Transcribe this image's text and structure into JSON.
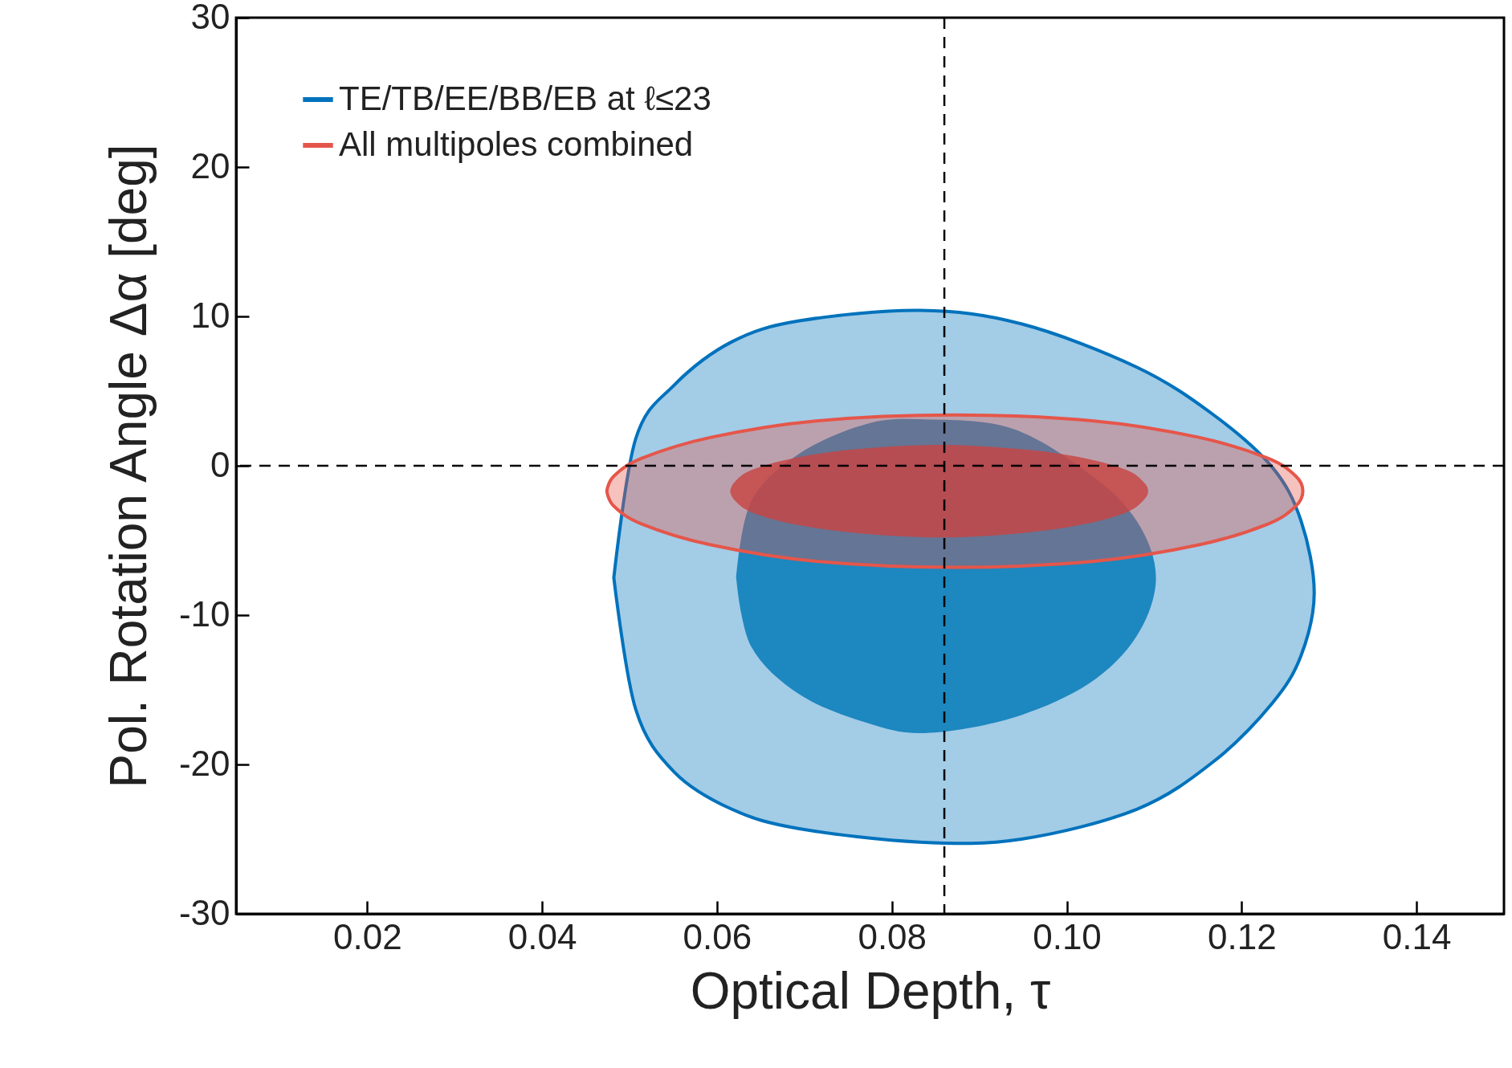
{
  "chart_data": {
    "type": "area",
    "xlabel": "Optical Depth, τ",
    "ylabel": "Pol. Rotation Angle Δα [deg]",
    "xlim": [
      0.005,
      0.15
    ],
    "ylim": [
      -30,
      30
    ],
    "xticks": [
      0.02,
      0.04,
      0.06,
      0.08,
      {
        "value": 0.1,
        "label": "0.10"
      },
      0.12,
      0.14
    ],
    "yticks": [
      -30,
      -20,
      -10,
      0,
      10,
      20,
      30
    ],
    "grid": false,
    "legend": "top left",
    "series": [
      {
        "name": "TE/TB/EE/BB/EB at ℓ≤23",
        "color": "#0072bc",
        "line_style": "solid",
        "x": [
          0.0482,
          0.0507,
          0.0551,
          0.0617,
          0.0694,
          0.0832,
          0.0948,
          0.108,
          0.1168,
          0.1235,
          0.1268,
          0.1283,
          0.1268,
          0.1235,
          0.1168,
          0.108,
          0.0948,
          0.0832,
          0.0694,
          0.0617,
          0.0551,
          0.0507,
          0.0482
        ],
        "values": [
          -7.5,
          1.8,
          5.4,
          8.3,
          9.7,
          10.4,
          9.5,
          6.6,
          3.4,
          -0.1,
          -3.7,
          -8.5,
          -12.7,
          -15.9,
          -19.8,
          -23.0,
          -25.0,
          -25.2,
          -24.3,
          -23.0,
          -20.5,
          -16.3,
          -7.5
        ]
      },
      {
        "color": "#0077b6",
        "x": [
          0.0622,
          0.0639,
          0.0694,
          0.0771,
          0.0838,
          0.0937,
          0.1025,
          0.108,
          0.1102,
          0.108,
          0.1025,
          0.0937,
          0.0838,
          0.0771,
          0.0694,
          0.0639,
          0.0622
        ],
        "values": [
          -7.5,
          -2.4,
          0.8,
          2.8,
          3.1,
          2.5,
          -0.5,
          -3.7,
          -7.5,
          -11.4,
          -14.6,
          -16.9,
          -17.9,
          -17.2,
          -15.3,
          -12.1,
          -7.5
        ]
      },
      {
        "name": "All multipoles combined",
        "color": "#e5564a",
        "line_style": "solid",
        "x": [
          0.0474,
          0.0482,
          0.0514,
          0.0593,
          0.0713,
          0.0872,
          0.1031,
          0.1151,
          0.123,
          0.1262,
          0.127,
          0.1262,
          0.123,
          0.1151,
          0.1031,
          0.0872,
          0.0713,
          0.0593,
          0.0514,
          0.0482,
          0.0474
        ],
        "values": [
          -1.7,
          -0.7,
          0.5,
          1.9,
          3.0,
          3.4,
          3.0,
          1.9,
          0.5,
          -0.7,
          -1.7,
          -2.7,
          -3.9,
          -5.3,
          -6.4,
          -6.8,
          -6.4,
          -5.3,
          -3.9,
          -2.7,
          -1.7
        ]
      },
      {
        "color": "#c84443",
        "x": [
          0.0615,
          0.062,
          0.0639,
          0.0687,
          0.0758,
          0.0854,
          0.095,
          0.1021,
          0.1069,
          0.1088,
          0.1093,
          0.1088,
          0.1069,
          0.1021,
          0.095,
          0.0854,
          0.0758,
          0.0687,
          0.0639,
          0.062,
          0.0615
        ],
        "values": [
          -1.7,
          -1.1,
          -0.3,
          0.5,
          1.1,
          1.4,
          1.1,
          0.5,
          -0.3,
          -1.1,
          -1.7,
          -2.3,
          -3.1,
          -3.9,
          -4.5,
          -4.8,
          -4.5,
          -3.9,
          -3.1,
          -2.3,
          -1.7
        ]
      }
    ],
    "ref_lines": [
      {
        "axis": "x",
        "value": 0.086,
        "color": "#000000",
        "line_style": "dashed"
      },
      {
        "axis": "y",
        "value": 0,
        "color": "#000000",
        "line_style": "dashed"
      }
    ]
  }
}
